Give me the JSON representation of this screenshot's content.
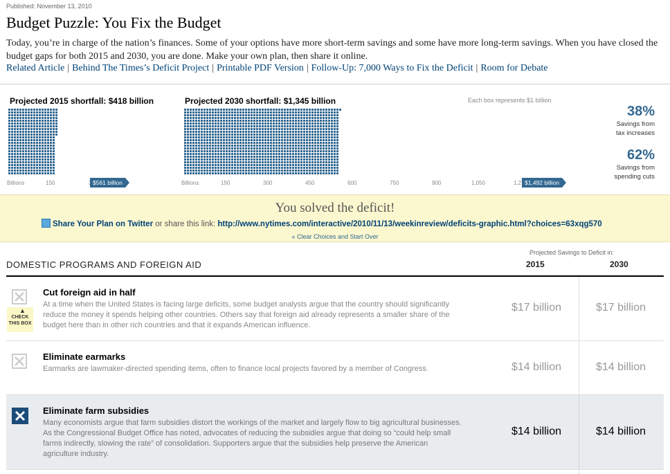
{
  "header": {
    "published": "Published: November 13, 2010",
    "title": "Budget Puzzle: You Fix the Budget",
    "intro": "Today, you’re in charge of the nation’s finances. Some of your options have more short-term savings and some have more long-term savings. When you have closed the budget gaps for both 2015 and 2030, you are done. Make your own plan, then share it online.",
    "links": [
      "Related Article",
      "Behind The Times’s Deficit Project",
      "Printable PDF Version",
      "Follow-Up: 7,000 Ways to Fix the Deficit",
      "Room for Debate"
    ]
  },
  "chart_data": [
    {
      "type": "waffle",
      "title": "Projected 2015 shortfall: $418 billion",
      "unit_note": "Each box represents $1 billion",
      "shortfall": 418,
      "savings_marker_label": "$561 billion",
      "savings": 561,
      "axis_ticks": [
        "Billions",
        "150",
        "300"
      ],
      "color": "#326891"
    },
    {
      "type": "waffle",
      "title": "Projected 2030 shortfall: $1,345 billion",
      "unit_note": "Each box represents $1 billion",
      "shortfall": 1345,
      "savings_marker_label": "$1,492 billion",
      "savings": 1492,
      "axis_ticks": [
        "Billions",
        "150",
        "300",
        "450",
        "600",
        "750",
        "900",
        "1,050",
        "1,2"
      ],
      "color": "#326891"
    }
  ],
  "summary": {
    "tax_pct": "38%",
    "tax_label_1": "Savings from",
    "tax_label_2": "tax increases",
    "cut_pct": "62%",
    "cut_label_1": "Savings from",
    "cut_label_2": "spending cuts"
  },
  "solved": {
    "title": "You solved the deficit!",
    "twitter_label": "Share Your Plan on Twitter",
    "or_text": " or share this link: ",
    "share_url": "http://www.nytimes.com/interactive/2010/11/13/weekinreview/deficits-graphic.html?choices=63xqg570",
    "clear_label": "« Clear Choices and Start Over"
  },
  "table": {
    "projected_label": "Projected Savings to Deficit in:",
    "section_title": "DOMESTIC PROGRAMS AND FOREIGN AID",
    "col_2015": "2015",
    "col_2030": "2030",
    "check_hint": "CHECK THIS BOX",
    "rows": [
      {
        "title": "Cut foreign aid in half",
        "desc": "At a time when the United States is facing large deficits, some budget analysts argue that the country should significantly reduce the money it spends helping other countries. Others say that foreign aid already represents a smaller share of the budget here than in other rich countries and that it expands American influence.",
        "v2015": "$17 billion",
        "v2030": "$17 billion",
        "checked": false
      },
      {
        "title": "Eliminate earmarks",
        "desc": "Earmarks are lawmaker-directed spending items, often to finance local projects favored by a member of Congress.",
        "v2015": "$14 billion",
        "v2030": "$14 billion",
        "checked": false
      },
      {
        "title": "Eliminate farm subsidies",
        "desc": "Many economists argue that farm subsidies distort the workings of the market and largely flow to big agricultural businesses. As the Congressional Budget Office has noted, advocates of reducing the subsidies argue that doing so “could help small farms indirectly, slowing the rate” of consolidation. Supporters argue that the subsidies help preserve the American agriculture industry.",
        "v2015": "$14 billion",
        "v2030": "$14 billion",
        "checked": true
      }
    ]
  }
}
